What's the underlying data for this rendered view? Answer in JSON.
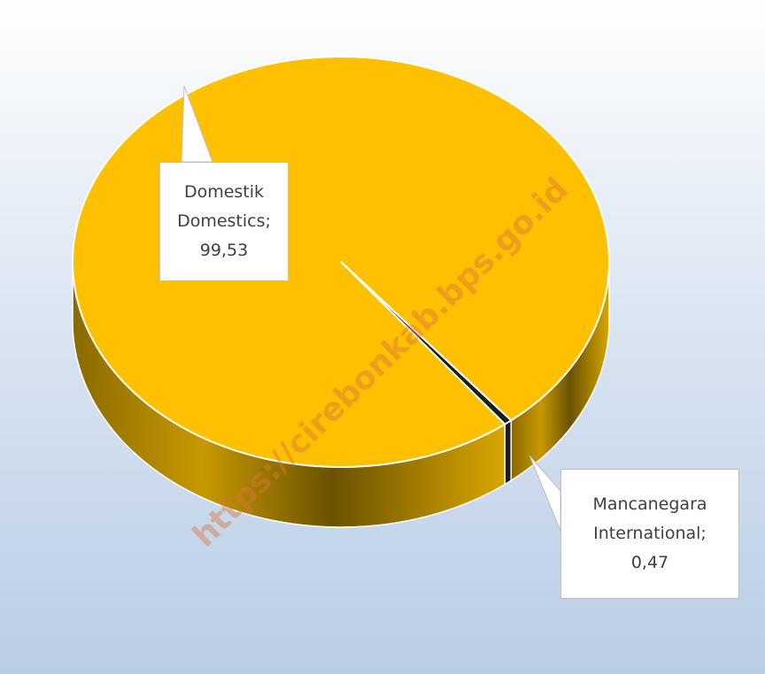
{
  "chart_data": {
    "type": "pie",
    "categories": [
      "Domestik Domestics",
      "Mancanegara International"
    ],
    "values": [
      99.53,
      0.47
    ],
    "value_labels": [
      "99,53",
      "0,47"
    ],
    "label_separator": ";",
    "colors": [
      "#ffc000",
      "#1c1c1c"
    ],
    "watermark": "https://cirebonkab.bps.go.id"
  }
}
